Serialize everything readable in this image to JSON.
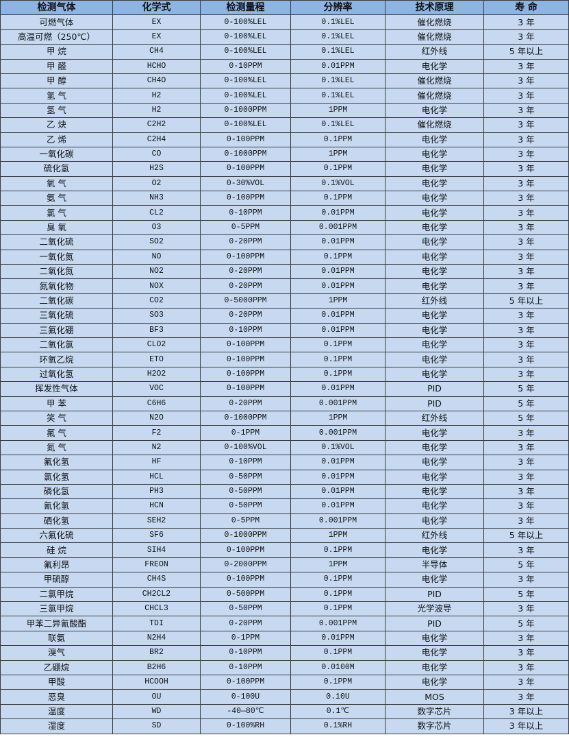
{
  "table": {
    "headers": [
      "检测气体",
      "化学式",
      "检测量程",
      "分辨率",
      "技术原理",
      "寿 命"
    ],
    "rows": [
      [
        "可燃气体",
        "EX",
        "0-100%LEL",
        "0.1%LEL",
        "催化燃烧",
        "3 年"
      ],
      [
        "高温可燃（250℃）",
        "EX",
        "0-100%LEL",
        "0.1%LEL",
        "催化燃烧",
        "3 年"
      ],
      [
        "甲 烷",
        "CH4",
        "0-100%LEL",
        "0.1%LEL",
        "红外线",
        "5 年以上"
      ],
      [
        "甲 醛",
        "HCHO",
        "0-10PPM",
        "0.01PPM",
        "电化学",
        "3 年"
      ],
      [
        "甲 醇",
        "CH4O",
        "0-100%LEL",
        "0.1%LEL",
        "催化燃烧",
        "3 年"
      ],
      [
        "氢 气",
        "H2",
        "0-100%LEL",
        "0.1%LEL",
        "催化燃烧",
        "3 年"
      ],
      [
        "氢 气",
        "H2",
        "0-1000PPM",
        "1PPM",
        "电化学",
        "3 年"
      ],
      [
        "乙 炔",
        "C2H2",
        "0-100%LEL",
        "0.1%LEL",
        "催化燃烧",
        "3 年"
      ],
      [
        "乙 烯",
        "C2H4",
        "0-100PPM",
        "0.1PPM",
        "电化学",
        "3 年"
      ],
      [
        "一氧化碳",
        "CO",
        "0-1000PPM",
        "1PPM",
        "电化学",
        "3 年"
      ],
      [
        "硫化氢",
        "H2S",
        "0-100PPM",
        "0.1PPM",
        "电化学",
        "3 年"
      ],
      [
        "氧 气",
        "O2",
        "0-30%VOL",
        "0.1%VOL",
        "电化学",
        "3 年"
      ],
      [
        "氨 气",
        "NH3",
        "0-100PPM",
        "0.1PPM",
        "电化学",
        "3 年"
      ],
      [
        "氯 气",
        "CL2",
        "0-10PPM",
        "0.01PPM",
        "电化学",
        "3 年"
      ],
      [
        "臭 氧",
        "O3",
        "0-5PPM",
        "0.001PPM",
        "电化学",
        "3 年"
      ],
      [
        "二氧化硫",
        "SO2",
        "0-20PPM",
        "0.01PPM",
        "电化学",
        "3 年"
      ],
      [
        "一氧化氮",
        "NO",
        "0-100PPM",
        "0.1PPM",
        "电化学",
        "3 年"
      ],
      [
        "二氧化氮",
        "NO2",
        "0-20PPM",
        "0.01PPM",
        "电化学",
        "3 年"
      ],
      [
        "氮氧化物",
        "NOX",
        "0-20PPM",
        "0.01PPM",
        "电化学",
        "3 年"
      ],
      [
        "二氧化碳",
        "CO2",
        "0-5000PPM",
        "1PPM",
        "红外线",
        "5 年以上"
      ],
      [
        "三氧化硫",
        "SO3",
        "0-20PPM",
        "0.01PPM",
        "电化学",
        "3 年"
      ],
      [
        "三氟化硼",
        "BF3",
        "0-10PPM",
        "0.01PPM",
        "电化学",
        "3 年"
      ],
      [
        "二氧化氯",
        "CLO2",
        "0-100PPM",
        "0.1PPM",
        "电化学",
        "3 年"
      ],
      [
        "环氧乙烷",
        "ETO",
        "0-100PPM",
        "0.1PPM",
        "电化学",
        "3 年"
      ],
      [
        "过氧化氢",
        "H2O2",
        "0-100PPM",
        "0.1PPM",
        "电化学",
        "3 年"
      ],
      [
        "挥发性气体",
        "VOC",
        "0-100PPM",
        "0.01PPM",
        "PID",
        "5 年"
      ],
      [
        "甲 苯",
        "C6H6",
        "0-20PPM",
        "0.001PPM",
        "PID",
        "5 年"
      ],
      [
        "笑 气",
        "N2O",
        "0-1000PPM",
        "1PPM",
        "红外线",
        "5 年"
      ],
      [
        "氟 气",
        "F2",
        "0-1PPM",
        "0.001PPM",
        "电化学",
        "3 年"
      ],
      [
        "氮 气",
        "N2",
        "0-100%VOL",
        "0.1%VOL",
        "电化学",
        "3 年"
      ],
      [
        "氟化氢",
        "HF",
        "0-10PPM",
        "0.01PPM",
        "电化学",
        "3 年"
      ],
      [
        "氯化氢",
        "HCL",
        "0-50PPM",
        "0.01PPM",
        "电化学",
        "3 年"
      ],
      [
        "磷化氢",
        "PH3",
        "0-50PPM",
        "0.01PPM",
        "电化学",
        "3 年"
      ],
      [
        "氰化氢",
        "HCN",
        "0-50PPM",
        "0.01PPM",
        "电化学",
        "3 年"
      ],
      [
        "硒化氢",
        "SEH2",
        "0-5PPM",
        "0.001PPM",
        "电化学",
        "3 年"
      ],
      [
        "六氟化硫",
        "SF6",
        "0-1000PPM",
        "1PPM",
        "红外线",
        "5 年以上"
      ],
      [
        "硅 烷",
        "SIH4",
        "0-100PPM",
        "0.1PPM",
        "电化学",
        "3 年"
      ],
      [
        "氟利昂",
        "FREON",
        "0-2000PPM",
        "1PPM",
        "半导体",
        "5 年"
      ],
      [
        "甲硫醇",
        "CH4S",
        "0-100PPM",
        "0.1PPM",
        "电化学",
        "3 年"
      ],
      [
        "二氯甲烷",
        "CH2CL2",
        "0-500PPM",
        "0.1PPM",
        "PID",
        "5 年"
      ],
      [
        "三氯甲烷",
        "CHCL3",
        "0-50PPM",
        "0.1PPM",
        "光学波导",
        "3 年"
      ],
      [
        "甲苯二异氰酸酯",
        "TDI",
        "0-20PPM",
        "0.001PPM",
        "PID",
        "5 年"
      ],
      [
        "联氨",
        "N2H4",
        "0-1PPM",
        "0.01PPM",
        "电化学",
        "3 年"
      ],
      [
        "溴气",
        "BR2",
        "0-10PPM",
        "0.1PPM",
        "电化学",
        "3 年"
      ],
      [
        "乙硼烷",
        "B2H6",
        "0-10PPM",
        "0.0100M",
        "电化学",
        "3 年"
      ],
      [
        "甲酸",
        "HCOOH",
        "0-100PPM",
        "0.1PPM",
        "电化学",
        "3 年"
      ],
      [
        "恶臭",
        "OU",
        "0-100U",
        "0.10U",
        "MOS",
        "3 年"
      ],
      [
        "温度",
        "WD",
        "-40—80℃",
        "0.1℃",
        "数字芯片",
        "3 年以上"
      ],
      [
        "湿度",
        "SD",
        "0-100%RH",
        "0.1%RH",
        "数字芯片",
        "3 年以上"
      ]
    ]
  },
  "colors": {
    "header_bg": "#8eb4e3",
    "row_bg": "#c6d9f1",
    "border": "#3b3b3b"
  }
}
